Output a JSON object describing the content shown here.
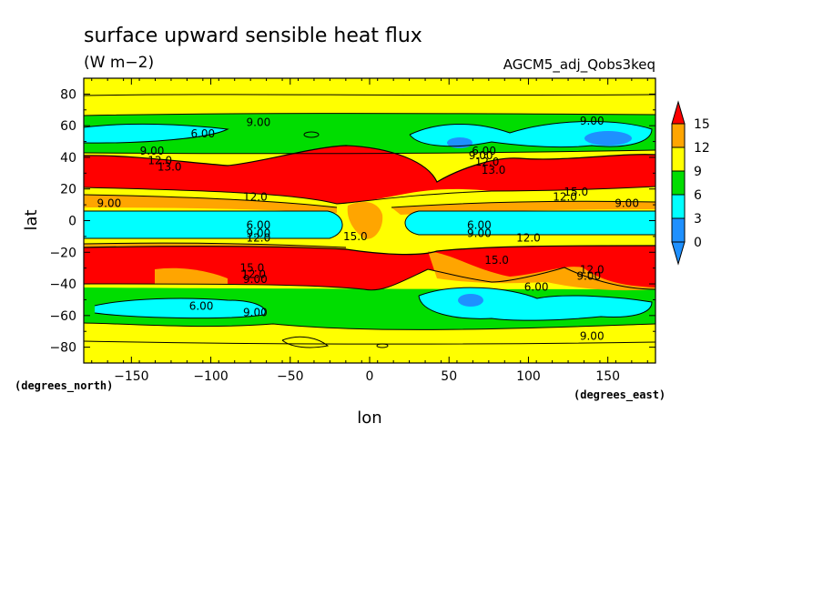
{
  "chart_data": {
    "type": "contour",
    "title": "surface upward sensible heat flux",
    "units": "(W m−2)",
    "run_label": "AGCM5_adj_Qobs3keq",
    "xlabel": "lon",
    "ylabel": "lat",
    "x_unit_label": "(degrees_east)",
    "y_unit_label": "(degrees_north)",
    "xlim": [
      -180,
      180
    ],
    "ylim": [
      -90,
      90
    ],
    "x_ticks": [
      -150,
      -100,
      -50,
      0,
      50,
      100,
      150
    ],
    "x_tick_labels": [
      "−150",
      "−100",
      "−50",
      "0",
      "50",
      "100",
      "150"
    ],
    "y_ticks": [
      80,
      60,
      40,
      20,
      0,
      -20,
      -40,
      -60,
      -80
    ],
    "y_tick_labels": [
      "80",
      "60",
      "40",
      "20",
      "0",
      "−20",
      "−40",
      "−60",
      "−80"
    ],
    "levels": [
      0,
      3,
      6,
      9,
      12,
      15
    ],
    "colorbar": {
      "labels": [
        "15",
        "12",
        "9",
        "6",
        "3",
        "0"
      ],
      "colors": [
        "#ff0000",
        "#ffa500",
        "#ffff00",
        "#00dd00",
        "#00ffff",
        "#1e90ff"
      ],
      "extend": "both"
    },
    "contour_labels": [
      {
        "text": "9.00",
        "lon": -70,
        "lat": 62
      },
      {
        "text": "9.00",
        "lon": 140,
        "lat": 63
      },
      {
        "text": "6.00",
        "lon": -105,
        "lat": 55
      },
      {
        "text": "6.00",
        "lon": 72,
        "lat": 44
      },
      {
        "text": "9.00",
        "lon": -137,
        "lat": 44
      },
      {
        "text": "9.00",
        "lon": 70,
        "lat": 41
      },
      {
        "text": "12.0",
        "lon": -132,
        "lat": 38
      },
      {
        "text": "12.0",
        "lon": 74,
        "lat": 37
      },
      {
        "text": "13.0",
        "lon": -126,
        "lat": 34
      },
      {
        "text": "13.0",
        "lon": 78,
        "lat": 32
      },
      {
        "text": "12.0",
        "lon": -72,
        "lat": 15
      },
      {
        "text": "15.0",
        "lon": 130,
        "lat": 18
      },
      {
        "text": "12.0",
        "lon": 123,
        "lat": 15
      },
      {
        "text": "9.00",
        "lon": -164,
        "lat": 11
      },
      {
        "text": "9.00",
        "lon": 162,
        "lat": 11
      },
      {
        "text": "6.00",
        "lon": -70,
        "lat": -3
      },
      {
        "text": "6.00",
        "lon": 69,
        "lat": -3
      },
      {
        "text": "9.00",
        "lon": -70,
        "lat": -8
      },
      {
        "text": "9.00",
        "lon": 69,
        "lat": -8
      },
      {
        "text": "12.0",
        "lon": -70,
        "lat": -11
      },
      {
        "text": "12.0",
        "lon": 100,
        "lat": -11
      },
      {
        "text": "15.0",
        "lon": -9,
        "lat": -10
      },
      {
        "text": "15.0",
        "lon": 80,
        "lat": -25
      },
      {
        "text": "15.0",
        "lon": -74,
        "lat": -30
      },
      {
        "text": "12.0",
        "lon": -73,
        "lat": -34
      },
      {
        "text": "9.00",
        "lon": -72,
        "lat": -37
      },
      {
        "text": "12.0",
        "lon": 140,
        "lat": -31
      },
      {
        "text": "9.00",
        "lon": 138,
        "lat": -35
      },
      {
        "text": "6.00",
        "lon": 105,
        "lat": -42
      },
      {
        "text": "6.00",
        "lon": -106,
        "lat": -54
      },
      {
        "text": "9.00",
        "lon": -72,
        "lat": -58
      },
      {
        "text": "9.00",
        "lon": 140,
        "lat": -73
      }
    ]
  }
}
